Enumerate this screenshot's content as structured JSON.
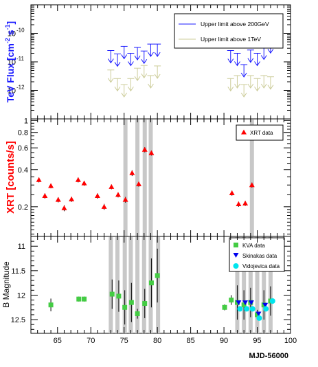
{
  "figure": {
    "x_axis_title": "MJD-56000",
    "x_ticks": [
      65,
      70,
      75,
      80,
      85,
      90,
      95,
      100
    ],
    "xlim": [
      61,
      100
    ]
  },
  "chart_data": [
    {
      "type": "scatter",
      "panel": "top",
      "ylabel": "TeV Flux [cm^-2 s^-1]",
      "ylabel_main": "TeV Flux [cm",
      "ylabel_exp1": "-2",
      "ylabel_mid": " s",
      "ylabel_exp2": "-1",
      "ylabel_end": "]",
      "ylabel_color": "#1a1aff",
      "y_scale": "log",
      "ylim": [
        1e-13,
        1e-09
      ],
      "y_ticks": [
        {
          "value": 1e-10,
          "base": "10",
          "exp": "-10"
        },
        {
          "value": 1e-11,
          "base": "10",
          "exp": "-11"
        },
        {
          "value": 1e-12,
          "base": "10",
          "exp": "-12"
        }
      ],
      "legend_position": "top-right",
      "series": [
        {
          "name": "Upper limit above 200GeV",
          "marker": "upper-limit-arrow",
          "color": "#1a1aff",
          "points": [
            {
              "x": 73.0,
              "y": 2.5e-11
            },
            {
              "x": 74.0,
              "y": 1.9e-11
            },
            {
              "x": 75.0,
              "y": 3.5e-11
            },
            {
              "x": 76.0,
              "y": 2e-11
            },
            {
              "x": 77.0,
              "y": 3.2e-11
            },
            {
              "x": 78.0,
              "y": 2.4e-11
            },
            {
              "x": 79.0,
              "y": 4.2e-11
            },
            {
              "x": 80.0,
              "y": 4.2e-11
            },
            {
              "x": 91.0,
              "y": 2.5e-11
            },
            {
              "x": 92.0,
              "y": 2e-11
            },
            {
              "x": 93.0,
              "y": 8e-12
            },
            {
              "x": 94.0,
              "y": 2.6e-11
            },
            {
              "x": 95.0,
              "y": 2e-11
            },
            {
              "x": 96.0,
              "y": 3.3e-11
            },
            {
              "x": 97.0,
              "y": 5.5e-11
            }
          ]
        },
        {
          "name": "Upper limit above 1TeV",
          "marker": "upper-limit-arrow",
          "color": "#cccc99",
          "points": [
            {
              "x": 73.0,
              "y": 5.2e-12
            },
            {
              "x": 74.0,
              "y": 2.6e-12
            },
            {
              "x": 75.0,
              "y": 1.6e-12
            },
            {
              "x": 76.0,
              "y": 2.6e-12
            },
            {
              "x": 77.0,
              "y": 6e-12
            },
            {
              "x": 78.0,
              "y": 7.5e-12
            },
            {
              "x": 79.0,
              "y": 3.3e-12
            },
            {
              "x": 80.0,
              "y": 7.2e-12
            },
            {
              "x": 91.0,
              "y": 2.6e-12
            },
            {
              "x": 92.0,
              "y": 3.3e-12
            },
            {
              "x": 93.0,
              "y": 1.6e-12
            },
            {
              "x": 94.0,
              "y": 3.3e-12
            },
            {
              "x": 95.0,
              "y": 2.6e-12
            },
            {
              "x": 96.0,
              "y": 3.3e-12
            },
            {
              "x": 97.0,
              "y": 3e-12
            }
          ]
        }
      ]
    },
    {
      "type": "scatter",
      "panel": "middle",
      "ylabel": "XRT [counts/s]",
      "ylabel_color": "#ff0000",
      "y_scale": "log",
      "ylim": [
        0.115,
        1.03
      ],
      "y_ticks": [
        {
          "value": 0.2,
          "label": "0.2"
        },
        {
          "value": 0.4,
          "label": "0.4"
        },
        {
          "value": 0.6,
          "label": "0.6"
        },
        {
          "value": 0.8,
          "label": "0.8"
        },
        {
          "value": 1.0,
          "label": "1"
        }
      ],
      "legend_position": "top-right",
      "series": [
        {
          "name": "XRT data",
          "marker": "triangle-up",
          "color": "#ff0000",
          "points": [
            {
              "x": 62.2,
              "y": 0.33,
              "yerr": 0.015
            },
            {
              "x": 63.1,
              "y": 0.245,
              "yerr": 0.012
            },
            {
              "x": 64.0,
              "y": 0.295,
              "yerr": 0.013
            },
            {
              "x": 65.1,
              "y": 0.228,
              "yerr": 0.011
            },
            {
              "x": 66.0,
              "y": 0.195,
              "yerr": 0.011
            },
            {
              "x": 67.1,
              "y": 0.23,
              "yerr": 0.011
            },
            {
              "x": 68.1,
              "y": 0.33,
              "yerr": 0.015
            },
            {
              "x": 69.0,
              "y": 0.31,
              "yerr": 0.014
            },
            {
              "x": 71.0,
              "y": 0.245,
              "yerr": 0.012
            },
            {
              "x": 72.0,
              "y": 0.2,
              "yerr": 0.011
            },
            {
              "x": 73.1,
              "y": 0.29,
              "yerr": 0.013
            },
            {
              "x": 74.1,
              "y": 0.25,
              "yerr": 0.012
            },
            {
              "x": 75.2,
              "y": 0.228,
              "yerr": 0.012
            },
            {
              "x": 76.2,
              "y": 0.375,
              "yerr": 0.02
            },
            {
              "x": 77.2,
              "y": 0.305,
              "yerr": 0.014
            },
            {
              "x": 78.1,
              "y": 0.58,
              "yerr": 0.028
            },
            {
              "x": 79.1,
              "y": 0.545,
              "yerr": 0.025
            },
            {
              "x": 91.2,
              "y": 0.258,
              "yerr": 0.012
            },
            {
              "x": 92.2,
              "y": 0.21,
              "yerr": 0.01
            },
            {
              "x": 93.2,
              "y": 0.213,
              "yerr": 0.01
            },
            {
              "x": 94.2,
              "y": 0.3,
              "yerr": 0.014
            }
          ]
        }
      ]
    },
    {
      "type": "scatter",
      "panel": "bottom",
      "ylabel": "B Magnitude",
      "ylabel_color": "#000000",
      "y_reversed": true,
      "ylim": [
        12.78,
        10.8
      ],
      "y_ticks": [
        {
          "value": 11.0,
          "label": "11"
        },
        {
          "value": 11.5,
          "label": "11.5"
        },
        {
          "value": 12.0,
          "label": "12"
        },
        {
          "value": 12.5,
          "label": "12.5"
        }
      ],
      "legend_position": "top-right",
      "series": [
        {
          "name": "KVA data",
          "marker": "square",
          "color": "#44cc44",
          "points": [
            {
              "x": 64.0,
              "y": 12.2,
              "yerr": 0.13
            },
            {
              "x": 68.2,
              "y": 12.08,
              "yerr": 0.05
            },
            {
              "x": 69.0,
              "y": 12.08,
              "yerr": 0.05
            },
            {
              "x": 73.2,
              "y": 11.98,
              "yerr": 0.3
            },
            {
              "x": 74.2,
              "y": 12.02,
              "yerr": 0.32
            },
            {
              "x": 75.1,
              "y": 12.25,
              "yerr": 0.35
            },
            {
              "x": 76.1,
              "y": 12.15,
              "yerr": 0.4
            },
            {
              "x": 77.0,
              "y": 12.38,
              "yerr": 0.1
            },
            {
              "x": 78.1,
              "y": 12.17,
              "yerr": 0.3
            },
            {
              "x": 79.1,
              "y": 11.75,
              "yerr": 0.5
            },
            {
              "x": 80.0,
              "y": 11.6,
              "yerr": 0.55
            },
            {
              "x": 90.1,
              "y": 12.25,
              "yerr": 0.06
            },
            {
              "x": 91.1,
              "y": 12.1,
              "yerr": 0.1
            },
            {
              "x": 92.0,
              "y": 12.15,
              "yerr": 0.35
            },
            {
              "x": 93.0,
              "y": 12.2,
              "yerr": 0.3
            },
            {
              "x": 94.0,
              "y": 12.15,
              "yerr": 0.3
            },
            {
              "x": 95.0,
              "y": 12.4,
              "yerr": 0.1
            },
            {
              "x": 96.0,
              "y": 12.2,
              "yerr": 0.3
            },
            {
              "x": 97.0,
              "y": 12.12,
              "yerr": 0.3
            }
          ]
        },
        {
          "name": "Skinakas data",
          "marker": "triangle-down",
          "color": "#0000ee",
          "points": [
            {
              "x": 92.2,
              "y": 12.15,
              "yerr": 0.03
            },
            {
              "x": 93.2,
              "y": 12.15,
              "yerr": 0.03
            },
            {
              "x": 94.1,
              "y": 12.15,
              "yerr": 0.03
            },
            {
              "x": 95.2,
              "y": 12.38,
              "yerr": 0.03
            },
            {
              "x": 96.2,
              "y": 12.2,
              "yerr": 0.03
            }
          ]
        },
        {
          "name": "Vidojevica data",
          "marker": "circle",
          "color": "#00e5ee",
          "points": [
            {
              "x": 92.4,
              "y": 12.28,
              "yerr": 0.03
            },
            {
              "x": 93.4,
              "y": 12.28,
              "yerr": 0.03
            },
            {
              "x": 94.3,
              "y": 12.28,
              "yerr": 0.03
            },
            {
              "x": 95.3,
              "y": 12.47,
              "yerr": 0.03
            },
            {
              "x": 96.3,
              "y": 12.28,
              "yerr": 0.03
            },
            {
              "x": 97.3,
              "y": 12.12,
              "yerr": 0.03
            }
          ]
        }
      ]
    }
  ],
  "highlight_days": {
    "middle": [
      75.2,
      77.0,
      78.1,
      79.0,
      94.2
    ],
    "bottom": [
      73.0,
      74.0,
      75.1,
      76.0,
      77.0,
      78.0,
      79.0,
      80.1,
      92.0,
      93.0,
      94.0,
      95.0,
      96.0,
      97.0
    ],
    "color": "#c8c8c8"
  }
}
